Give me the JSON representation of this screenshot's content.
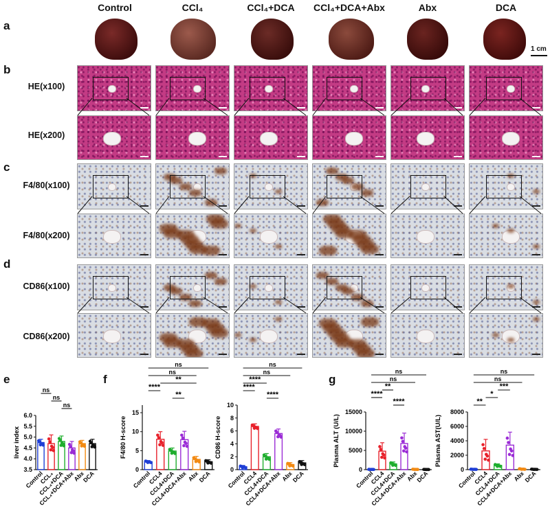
{
  "columns": [
    "Control",
    "CCl₄",
    "CCl₄+DCA",
    "CCl₄+DCA+Abx",
    "Abx",
    "DCA"
  ],
  "panels": {
    "a": "a",
    "b": "b",
    "c": "c",
    "d": "d",
    "e": "e",
    "f": "f",
    "g": "g"
  },
  "scale_bar_label": "1 cm",
  "rows": {
    "he100": "HE(x100)",
    "he200": "HE(x200)",
    "f480_100": "F4/80(x100)",
    "f480_200": "F4/80(x200)",
    "cd86_100": "CD86(x100)",
    "cd86_200": "CD86(x200)"
  },
  "colors": {
    "Control": "#1f3fd6",
    "CCL4": "#e8212b",
    "CCL4+DCA": "#1fae2e",
    "CCL4+DCA+Abx": "#9b2cd6",
    "Abx": "#f28a13",
    "DCA": "#111111"
  },
  "chart_data": [
    {
      "id": "liver-index",
      "type": "bar",
      "ylabel": "liver index",
      "categories": [
        "Control",
        "CCL₄",
        "CCL₄+DCA",
        "CCL₄+DCA+Abx",
        "Abx",
        "DCA"
      ],
      "values": [
        4.75,
        4.7,
        4.8,
        4.5,
        4.7,
        4.7
      ],
      "errors": [
        0.15,
        0.4,
        0.25,
        0.3,
        0.15,
        0.2
      ],
      "ylim": [
        3.5,
        6.0
      ],
      "yticks": [
        "3.5",
        "4.0",
        "4.5",
        "5.0",
        "5.5",
        "6.0"
      ],
      "annotations": [
        {
          "from": 0,
          "to": 1,
          "text": "ns"
        },
        {
          "from": 1,
          "to": 2,
          "text": "ns"
        },
        {
          "from": 2,
          "to": 3,
          "text": "ns"
        }
      ]
    },
    {
      "id": "f480-hscore",
      "type": "bar",
      "ylabel": "F4/80 H-score",
      "categories": [
        "Control",
        "CCL4",
        "CCL4+DCA",
        "CCL4+DCA+Abx",
        "Abx",
        "DCA"
      ],
      "values": [
        2.1,
        8.0,
        4.9,
        7.9,
        2.7,
        2.1
      ],
      "errors": [
        0.3,
        2.0,
        0.8,
        2.2,
        0.8,
        0.5
      ],
      "ylim": [
        0,
        17
      ],
      "yticks": [
        "0",
        "5",
        "10",
        "15"
      ],
      "annotations": [
        {
          "from": 0,
          "to": 5,
          "text": "ns"
        },
        {
          "from": 0,
          "to": 4,
          "text": "ns"
        },
        {
          "from": 1,
          "to": 4,
          "text": "**"
        },
        {
          "from": 0,
          "to": 1,
          "text": "****"
        },
        {
          "from": 2,
          "to": 3,
          "text": "**"
        }
      ]
    },
    {
      "id": "cd86-hscore",
      "type": "bar",
      "ylabel": "CD86 H-score",
      "categories": [
        "Control",
        "CCL4",
        "CCL4+DCA",
        "CCL4+DCA+Abx",
        "Abx",
        "DCA"
      ],
      "values": [
        0.45,
        6.7,
        2.0,
        5.6,
        0.8,
        1.05
      ],
      "errors": [
        0.2,
        0.4,
        0.5,
        0.7,
        0.3,
        0.35
      ],
      "ylim": [
        0,
        10
      ],
      "yticks": [
        "0",
        "2",
        "4",
        "6",
        "8",
        "10"
      ],
      "annotations": [
        {
          "from": 0,
          "to": 5,
          "text": "ns"
        },
        {
          "from": 0,
          "to": 4,
          "text": "ns"
        },
        {
          "from": 0,
          "to": 2,
          "text": "****"
        },
        {
          "from": 0,
          "to": 1,
          "text": "****"
        },
        {
          "from": 2,
          "to": 3,
          "text": "****"
        }
      ]
    },
    {
      "id": "plasma-alt",
      "type": "bar",
      "ylabel": "Plasma ALT  (U/L)",
      "categories": [
        "Control",
        "CCL4",
        "CCL4+DCA",
        "CCL4+DCA+Abx",
        "Abx",
        "DCA"
      ],
      "values": [
        60,
        4800,
        1500,
        6800,
        80,
        50
      ],
      "errors": [
        20,
        2200,
        500,
        2700,
        40,
        30
      ],
      "ylim": [
        0,
        15000
      ],
      "yticks": [
        "0",
        "5000",
        "10000",
        "15000"
      ],
      "annotations": [
        {
          "from": 0,
          "to": 5,
          "text": "ns"
        },
        {
          "from": 0,
          "to": 4,
          "text": "ns"
        },
        {
          "from": 1,
          "to": 2,
          "text": "**"
        },
        {
          "from": 0,
          "to": 1,
          "text": "****"
        },
        {
          "from": 2,
          "to": 3,
          "text": "****"
        }
      ]
    },
    {
      "id": "plasma-ast",
      "type": "bar",
      "ylabel": "Plasma AST(U/L)",
      "categories": [
        "Control",
        "CCL4",
        "CCL4+DCA",
        "CCL4+DCA+Abx",
        "Abx",
        "DCA"
      ],
      "values": [
        50,
        2600,
        600,
        3400,
        90,
        50
      ],
      "errors": [
        20,
        1600,
        200,
        1800,
        60,
        30
      ],
      "ylim": [
        0,
        8000
      ],
      "yticks": [
        "0",
        "2000",
        "4000",
        "6000",
        "8000"
      ],
      "annotations": [
        {
          "from": 0,
          "to": 5,
          "text": "ns"
        },
        {
          "from": 0,
          "to": 4,
          "text": "ns"
        },
        {
          "from": 2,
          "to": 3,
          "text": "***"
        },
        {
          "from": 1,
          "to": 2,
          "text": "*"
        },
        {
          "from": 0,
          "to": 1,
          "text": "**"
        }
      ]
    }
  ]
}
